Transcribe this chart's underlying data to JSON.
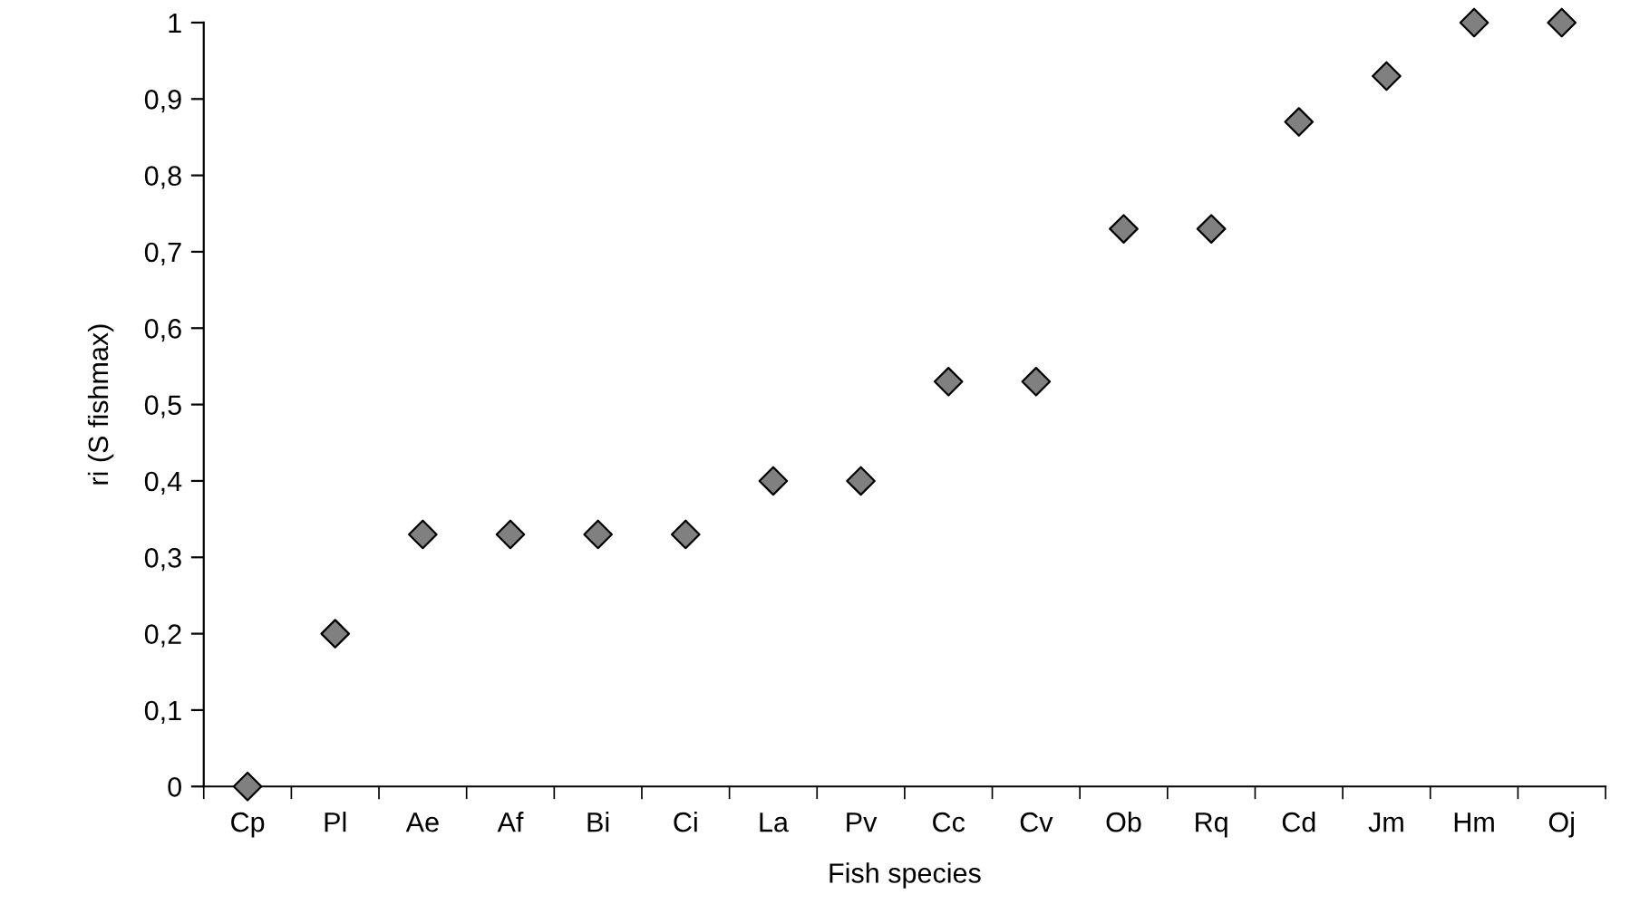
{
  "chart_data": {
    "type": "scatter",
    "xlabel": "Fish species",
    "ylabel": "ri (S fishmax)",
    "categories": [
      "Cp",
      "Pl",
      "Ae",
      "Af",
      "Bi",
      "Ci",
      "La",
      "Pv",
      "Cc",
      "Cv",
      "Ob",
      "Rq",
      "Cd",
      "Jm",
      "Hm",
      "Oj"
    ],
    "values": [
      0,
      0.2,
      0.33,
      0.33,
      0.33,
      0.33,
      0.4,
      0.4,
      0.53,
      0.53,
      0.73,
      0.73,
      0.87,
      0.93,
      1,
      1
    ],
    "color": "#808080",
    "marker": "diamond",
    "grid": false,
    "legend": false,
    "ylim": [
      0,
      1
    ],
    "yticks": [
      0,
      {
        "value": 0.1,
        "label": "0,1"
      },
      {
        "value": 0.2,
        "label": "0,2"
      },
      {
        "value": 0.3,
        "label": "0,3"
      },
      {
        "value": 0.4,
        "label": "0,4"
      },
      {
        "value": 0.5,
        "label": "0,5"
      },
      {
        "value": 0.6,
        "label": "0,6"
      },
      {
        "value": 0.7,
        "label": "0,7"
      },
      {
        "value": 0.8,
        "label": "0,8"
      },
      {
        "value": 0.9,
        "label": "0,9"
      },
      1
    ]
  }
}
